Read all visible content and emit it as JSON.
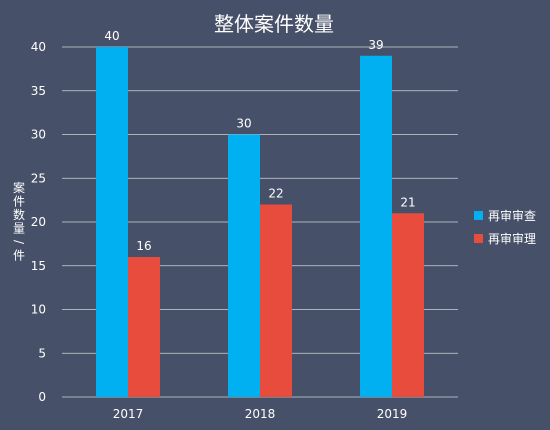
{
  "chart_data": {
    "type": "bar",
    "title": "整体案件数量",
    "ylabel": "案件数量/件",
    "xlabel": "",
    "categories": [
      "2017",
      "2018",
      "2019"
    ],
    "series": [
      {
        "name": "再审审查",
        "values": [
          40,
          30,
          39
        ],
        "color": "#00b0f0"
      },
      {
        "name": "再审审理",
        "values": [
          16,
          22,
          21
        ],
        "color": "#e84c3d"
      }
    ],
    "ylim": [
      0,
      40
    ],
    "yticks": [
      0,
      5,
      10,
      15,
      20,
      25,
      30,
      35,
      40
    ],
    "grid": true,
    "legend_position": "right",
    "data_labels": true,
    "colors": {
      "background": "#465068",
      "text": "#ffffff",
      "grid": "#ffffff",
      "axis": "#ffffff"
    }
  }
}
